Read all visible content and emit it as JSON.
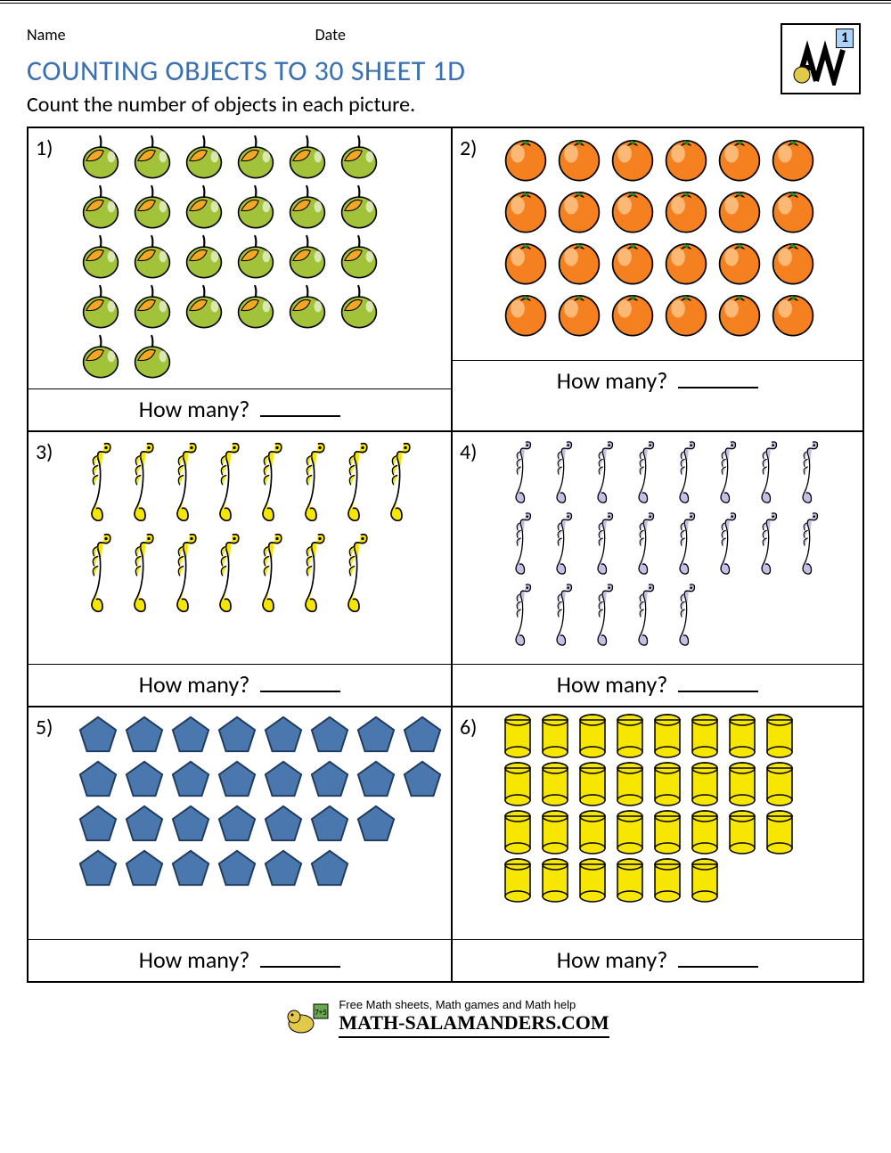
{
  "header": {
    "name_label": "Name",
    "date_label": "Date",
    "grade_badge": "1"
  },
  "title": "COUNTING OBJECTS TO 30 SHEET 1D",
  "subtitle": "Count the number of objects in each picture.",
  "answer_label": "How many?",
  "footer": {
    "tagline": "Free Math sheets, Math games and Math help",
    "brand": "MATH-SALAMANDERS.COM"
  },
  "colors": {
    "title": "#3a6fb0",
    "border": "#000000",
    "apple_body": "#a2c23a",
    "apple_shine": "#f5a623",
    "apple_stroke": "#000000",
    "orange_body": "#f58020",
    "orange_shine": "#ffd19a",
    "orange_leaf": "#2e8b2e",
    "seahorse_yellow": "#f7e600",
    "seahorse_purple": "#c3bfe6",
    "seahorse_stroke": "#000000",
    "pentagon_fill": "#4a77ad",
    "pentagon_stroke": "#1e3a5c",
    "cylinder_fill": "#f7e600",
    "cylinder_stroke": "#000000"
  },
  "questions": [
    {
      "number": "1)",
      "object": "apple",
      "rows": [
        6,
        6,
        6,
        6,
        2
      ],
      "item_size": 54
    },
    {
      "number": "2)",
      "object": "orange",
      "rows": [
        6,
        6,
        6,
        6
      ],
      "item_size": 56
    },
    {
      "number": "3)",
      "object": "seahorse_yellow",
      "rows": [
        8,
        7
      ],
      "item_size": 44,
      "item_h": 100
    },
    {
      "number": "4)",
      "object": "seahorse_purple",
      "rows": [
        8,
        8,
        5
      ],
      "item_size": 42,
      "item_h": 78
    },
    {
      "number": "5)",
      "object": "pentagon",
      "rows": [
        8,
        8,
        7,
        6
      ],
      "item_size": 48
    },
    {
      "number": "6)",
      "object": "cylinder",
      "rows": [
        8,
        8,
        8,
        6
      ],
      "item_size": 38,
      "item_h": 52
    }
  ]
}
